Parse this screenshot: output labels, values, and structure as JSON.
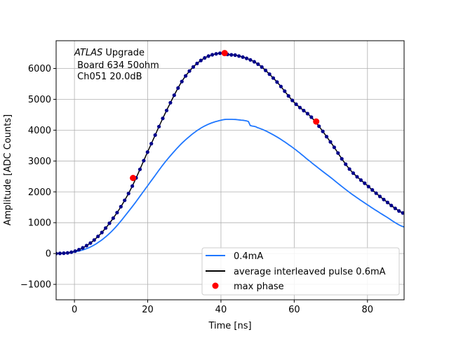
{
  "chart_data": {
    "type": "line",
    "xlabel": "Time [ns]",
    "ylabel": "Amplitude [ADC Counts]",
    "xlim": [
      -5,
      90
    ],
    "ylim": [
      -1500,
      6900
    ],
    "xticks": [
      0,
      20,
      40,
      60,
      80
    ],
    "yticks": [
      -1000,
      0,
      1000,
      2000,
      3000,
      4000,
      5000,
      6000
    ],
    "ytick_labels": [
      "−1000",
      "0",
      "1000",
      "2000",
      "3000",
      "4000",
      "5000",
      "6000"
    ],
    "grid": true,
    "legend_position": "lower-right",
    "annotation": {
      "atlas": "ATLAS",
      "line1_rest": " Upgrade",
      "line2": " Board 634 50ohm",
      "line3": " Ch051 20.0dB"
    },
    "colors": {
      "series_04mA": "#1f77ff",
      "series_avg": "#000000",
      "avg_markers": "#00008b",
      "max_phase": "#ff0000"
    },
    "series": [
      {
        "name": "0.4mA",
        "style": "line",
        "x": [
          -5,
          0,
          5,
          10,
          15,
          20,
          25,
          30,
          35,
          40,
          43,
          46,
          47.5,
          48,
          50,
          55,
          60,
          65,
          70,
          75,
          80,
          85,
          90
        ],
        "y": [
          0,
          50,
          250,
          700,
          1400,
          2200,
          3000,
          3650,
          4100,
          4320,
          4350,
          4320,
          4280,
          4150,
          4080,
          3800,
          3400,
          2920,
          2460,
          1990,
          1580,
          1200,
          860
        ]
      },
      {
        "name": "average interleaved pulse 0.6mA",
        "style": "line+markers",
        "x": [
          -5,
          0,
          5,
          10,
          15,
          20,
          25,
          30,
          35,
          40,
          42,
          45,
          50,
          55,
          60,
          65,
          70,
          75,
          80,
          85,
          90
        ],
        "y": [
          0,
          70,
          400,
          1050,
          2000,
          3300,
          4600,
          5700,
          6300,
          6500,
          6450,
          6400,
          6150,
          5600,
          4900,
          4380,
          3600,
          2750,
          2200,
          1700,
          1300
        ]
      },
      {
        "name": "max phase",
        "style": "markers",
        "x": [
          16,
          41,
          66
        ],
        "y": [
          2450,
          6500,
          4280
        ]
      }
    ]
  }
}
